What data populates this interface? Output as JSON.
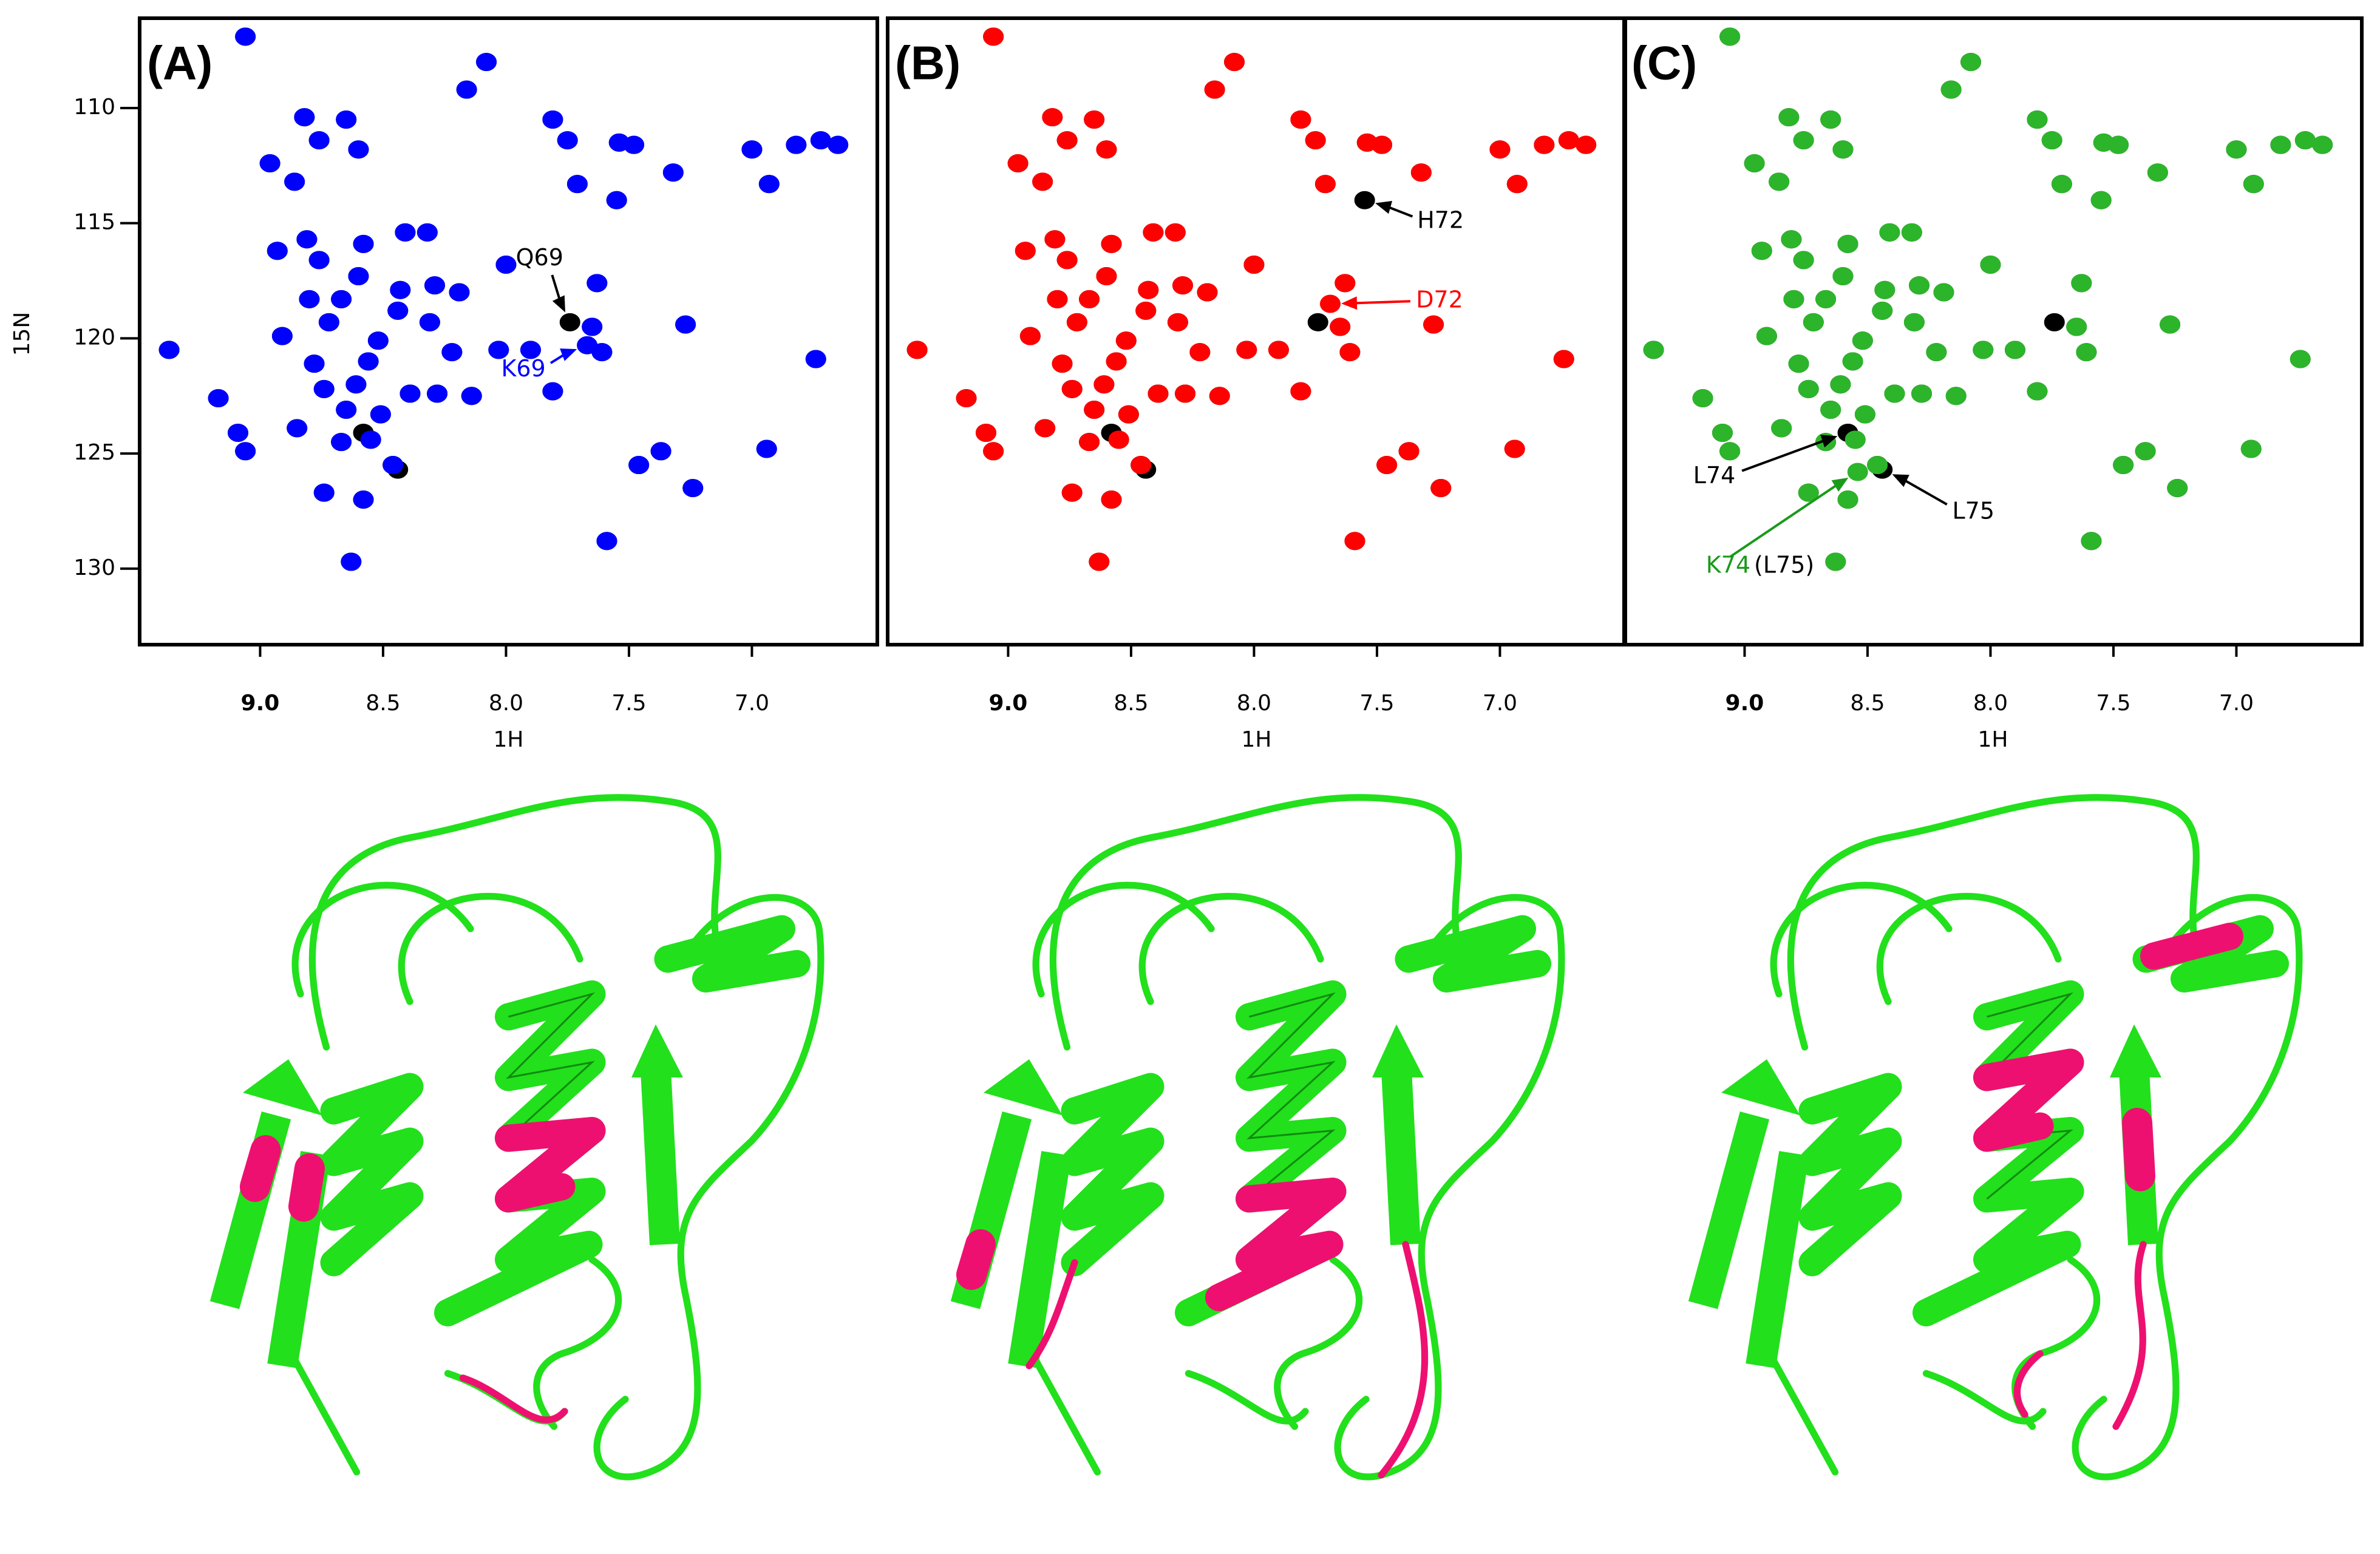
{
  "chart_data": [
    {
      "type": "scatter",
      "panel_label": "(A)",
      "xlabel": "1H",
      "ylabel": "15N",
      "xlim": [
        9.49,
        6.49
      ],
      "ylim": [
        106.1,
        133.3
      ],
      "xticks": [
        {
          "value": 9,
          "label": "9.0"
        },
        8.5,
        {
          "value": 8,
          "label": "8.0"
        },
        7.5,
        {
          "value": 7,
          "label": "7.0"
        }
      ],
      "yticks": [
        110,
        115,
        120,
        125,
        130
      ],
      "series": [
        {
          "color": "#000000",
          "x": [
            9.06,
            8.08,
            8.16,
            8.82,
            8.65,
            8.96,
            8.86,
            8.6,
            8.76,
            7.81,
            7.75,
            7.54,
            7.48,
            7.32,
            7.0,
            6.82,
            6.72,
            6.65,
            6.93,
            7.55,
            7.71,
            9.37,
            9.17,
            9.09,
            9.06,
            8.93,
            8.81,
            8.76,
            8.58,
            8.41,
            8.32,
            8.6,
            8.43,
            8.8,
            8.67,
            8.91,
            8.72,
            8.44,
            8.52,
            8.31,
            8.29,
            8.19,
            8.0,
            8.22,
            8.03,
            7.9,
            7.81,
            7.63,
            7.65,
            7.61,
            7.27,
            6.74,
            8.78,
            8.56,
            8.74,
            8.61,
            8.65,
            8.51,
            8.39,
            8.28,
            8.14,
            8.85,
            8.67,
            8.55,
            8.46,
            8.74,
            8.58,
            8.63,
            7.59,
            7.46,
            7.37,
            7.24,
            6.94,
            7.74,
            8.58,
            8.44
          ],
          "y": [
            106.9,
            108.0,
            109.2,
            110.4,
            110.5,
            112.4,
            113.2,
            111.8,
            111.4,
            110.5,
            111.4,
            111.5,
            111.6,
            112.8,
            111.8,
            111.6,
            111.4,
            111.6,
            113.3,
            114.0,
            113.3,
            120.5,
            122.6,
            124.1,
            124.9,
            116.2,
            115.7,
            116.6,
            115.9,
            115.4,
            115.4,
            117.3,
            117.9,
            118.3,
            118.3,
            119.9,
            119.3,
            118.8,
            120.1,
            119.3,
            117.7,
            118.0,
            116.8,
            120.6,
            120.5,
            120.5,
            122.3,
            117.6,
            119.5,
            120.6,
            119.4,
            120.9,
            121.1,
            121.0,
            122.2,
            122.0,
            123.1,
            123.3,
            122.4,
            122.4,
            122.5,
            123.9,
            124.5,
            124.4,
            125.5,
            126.7,
            127.0,
            129.7,
            128.8,
            125.5,
            124.9,
            126.5,
            124.8,
            119.3,
            124.1,
            125.7
          ]
        },
        {
          "color": "#0000ff",
          "x": [
            9.06,
            8.08,
            8.16,
            8.82,
            8.65,
            8.96,
            8.86,
            8.6,
            8.76,
            7.81,
            7.75,
            7.54,
            7.48,
            7.32,
            7.0,
            6.82,
            6.72,
            6.65,
            6.93,
            7.55,
            7.71,
            9.37,
            9.17,
            9.09,
            9.06,
            8.93,
            8.81,
            8.76,
            8.58,
            8.41,
            8.32,
            8.6,
            8.43,
            8.8,
            8.67,
            8.91,
            8.72,
            8.44,
            8.52,
            8.31,
            8.29,
            8.19,
            8.0,
            8.22,
            8.03,
            7.9,
            7.81,
            7.63,
            7.65,
            7.61,
            7.27,
            6.74,
            8.78,
            8.56,
            8.74,
            8.61,
            8.65,
            8.51,
            8.39,
            8.28,
            8.14,
            8.85,
            8.67,
            8.55,
            8.46,
            8.74,
            8.58,
            8.63,
            7.59,
            7.46,
            7.37,
            7.24,
            6.94,
            7.67
          ],
          "y": [
            106.9,
            108.0,
            109.2,
            110.4,
            110.5,
            112.4,
            113.2,
            111.8,
            111.4,
            110.5,
            111.4,
            111.5,
            111.6,
            112.8,
            111.8,
            111.6,
            111.4,
            111.6,
            113.3,
            114.0,
            113.3,
            120.5,
            122.6,
            124.1,
            124.9,
            116.2,
            115.7,
            116.6,
            115.9,
            115.4,
            115.4,
            117.3,
            117.9,
            118.3,
            118.3,
            119.9,
            119.3,
            118.8,
            120.1,
            119.3,
            117.7,
            118.0,
            116.8,
            120.6,
            120.5,
            120.5,
            122.3,
            117.6,
            119.5,
            120.6,
            119.4,
            120.9,
            121.1,
            121.0,
            122.2,
            122.0,
            123.1,
            123.3,
            122.4,
            122.4,
            122.5,
            123.9,
            124.5,
            124.4,
            125.5,
            126.7,
            127.0,
            129.7,
            128.8,
            125.5,
            124.9,
            126.5,
            124.8,
            120.3
          ]
        }
      ],
      "annotations": [
        {
          "text": "Q69",
          "color": "#000000",
          "x": 7.74,
          "y": 119.3
        },
        {
          "text": "K69",
          "color": "#0000ff",
          "x": 7.67,
          "y": 120.3
        }
      ]
    },
    {
      "type": "scatter",
      "panel_label": "(B)",
      "xlabel": "1H",
      "xlim": [
        9.49,
        6.49
      ],
      "ylim": [
        106.1,
        133.3
      ],
      "xticks": [
        {
          "value": 9,
          "label": "9.0"
        },
        8.5,
        {
          "value": 8,
          "label": "8.0"
        },
        7.5,
        {
          "value": 7,
          "label": "7.0"
        }
      ],
      "series": [
        {
          "color": "#000000",
          "x": [
            9.06,
            8.08,
            8.16,
            8.82,
            8.65,
            8.96,
            8.86,
            8.6,
            8.76,
            7.81,
            7.75,
            7.54,
            7.48,
            7.32,
            7.0,
            6.82,
            6.72,
            6.65,
            6.93,
            7.55,
            7.71,
            9.37,
            9.17,
            9.09,
            9.06,
            8.93,
            8.81,
            8.76,
            8.58,
            8.41,
            8.32,
            8.6,
            8.43,
            8.8,
            8.67,
            8.91,
            8.72,
            8.44,
            8.52,
            8.31,
            8.29,
            8.19,
            8.0,
            8.22,
            8.03,
            7.9,
            7.81,
            7.63,
            7.65,
            7.61,
            7.27,
            6.74,
            8.78,
            8.56,
            8.74,
            8.61,
            8.65,
            8.51,
            8.39,
            8.28,
            8.14,
            8.85,
            8.67,
            8.55,
            8.46,
            8.74,
            8.58,
            8.63,
            7.59,
            7.46,
            7.37,
            7.24,
            6.94,
            7.74,
            8.58,
            8.44
          ],
          "y": [
            106.9,
            108.0,
            109.2,
            110.4,
            110.5,
            112.4,
            113.2,
            111.8,
            111.4,
            110.5,
            111.4,
            111.5,
            111.6,
            112.8,
            111.8,
            111.6,
            111.4,
            111.6,
            113.3,
            114.0,
            113.3,
            120.5,
            122.6,
            124.1,
            124.9,
            116.2,
            115.7,
            116.6,
            115.9,
            115.4,
            115.4,
            117.3,
            117.9,
            118.3,
            118.3,
            119.9,
            119.3,
            118.8,
            120.1,
            119.3,
            117.7,
            118.0,
            116.8,
            120.6,
            120.5,
            120.5,
            122.3,
            117.6,
            119.5,
            120.6,
            119.4,
            120.9,
            121.1,
            121.0,
            122.2,
            122.0,
            123.1,
            123.3,
            122.4,
            122.4,
            122.5,
            123.9,
            124.5,
            124.4,
            125.5,
            126.7,
            127.0,
            129.7,
            128.8,
            125.5,
            124.9,
            126.5,
            124.8,
            119.3,
            124.1,
            125.7
          ]
        },
        {
          "color": "#ff0000",
          "x": [
            9.06,
            8.08,
            8.16,
            8.82,
            8.65,
            8.96,
            8.86,
            8.6,
            8.76,
            7.81,
            7.75,
            7.54,
            7.48,
            7.32,
            7.0,
            6.82,
            6.72,
            6.65,
            6.93,
            7.71,
            9.37,
            9.17,
            9.09,
            9.06,
            8.93,
            8.81,
            8.76,
            8.58,
            8.41,
            8.32,
            8.6,
            8.43,
            8.8,
            8.67,
            8.91,
            8.72,
            8.44,
            8.52,
            8.31,
            8.29,
            8.19,
            8.0,
            8.22,
            8.03,
            7.9,
            7.81,
            7.63,
            7.65,
            7.61,
            7.27,
            6.74,
            8.78,
            8.56,
            8.74,
            8.61,
            8.65,
            8.51,
            8.39,
            8.28,
            8.14,
            8.85,
            8.67,
            8.55,
            8.46,
            8.74,
            8.58,
            8.63,
            7.59,
            7.46,
            7.37,
            7.24,
            6.94,
            7.69
          ],
          "y": [
            106.9,
            108.0,
            109.2,
            110.4,
            110.5,
            112.4,
            113.2,
            111.8,
            111.4,
            110.5,
            111.4,
            111.5,
            111.6,
            112.8,
            111.8,
            111.6,
            111.4,
            111.6,
            113.3,
            113.3,
            120.5,
            122.6,
            124.1,
            124.9,
            116.2,
            115.7,
            116.6,
            115.9,
            115.4,
            115.4,
            117.3,
            117.9,
            118.3,
            118.3,
            119.9,
            119.3,
            118.8,
            120.1,
            119.3,
            117.7,
            118.0,
            116.8,
            120.6,
            120.5,
            120.5,
            122.3,
            117.6,
            119.5,
            120.6,
            119.4,
            120.9,
            121.1,
            121.0,
            122.2,
            122.0,
            123.1,
            123.3,
            122.4,
            122.4,
            122.5,
            123.9,
            124.5,
            124.4,
            125.5,
            126.7,
            127.0,
            129.7,
            128.8,
            125.5,
            124.9,
            126.5,
            124.8,
            118.5
          ]
        }
      ],
      "annotations": [
        {
          "text": "H72",
          "color": "#000000",
          "x": 7.55,
          "y": 114.0
        },
        {
          "text": "D72",
          "color": "#ff0000",
          "x": 7.69,
          "y": 118.5
        }
      ]
    },
    {
      "type": "scatter",
      "panel_label": "(C)",
      "xlabel": "1H",
      "xlim": [
        9.49,
        6.49
      ],
      "ylim": [
        106.1,
        133.3
      ],
      "xticks": [
        {
          "value": 9,
          "label": "9.0"
        },
        8.5,
        {
          "value": 8,
          "label": "8.0"
        },
        7.5,
        {
          "value": 7,
          "label": "7.0"
        }
      ],
      "series": [
        {
          "color": "#000000",
          "x": [
            9.06,
            8.08,
            8.16,
            8.82,
            8.65,
            8.96,
            8.86,
            8.6,
            8.76,
            7.81,
            7.75,
            7.54,
            7.48,
            7.32,
            7.0,
            6.82,
            6.72,
            6.65,
            6.93,
            7.55,
            7.71,
            9.37,
            9.17,
            9.09,
            9.06,
            8.93,
            8.81,
            8.76,
            8.58,
            8.41,
            8.32,
            8.6,
            8.43,
            8.8,
            8.67,
            8.91,
            8.72,
            8.44,
            8.52,
            8.31,
            8.29,
            8.19,
            8.0,
            8.22,
            8.03,
            7.9,
            7.81,
            7.63,
            7.65,
            7.61,
            7.27,
            6.74,
            8.78,
            8.56,
            8.74,
            8.61,
            8.65,
            8.51,
            8.39,
            8.28,
            8.14,
            8.85,
            8.67,
            8.55,
            8.46,
            8.74,
            8.58,
            8.63,
            7.59,
            7.46,
            7.37,
            7.24,
            6.94,
            7.74,
            8.58,
            8.44
          ],
          "y": [
            106.9,
            108.0,
            109.2,
            110.4,
            110.5,
            112.4,
            113.2,
            111.8,
            111.4,
            110.5,
            111.4,
            111.5,
            111.6,
            112.8,
            111.8,
            111.6,
            111.4,
            111.6,
            113.3,
            114.0,
            113.3,
            120.5,
            122.6,
            124.1,
            124.9,
            116.2,
            115.7,
            116.6,
            115.9,
            115.4,
            115.4,
            117.3,
            117.9,
            118.3,
            118.3,
            119.9,
            119.3,
            118.8,
            120.1,
            119.3,
            117.7,
            118.0,
            116.8,
            120.6,
            120.5,
            120.5,
            122.3,
            117.6,
            119.5,
            120.6,
            119.4,
            120.9,
            121.1,
            121.0,
            122.2,
            122.0,
            123.1,
            123.3,
            122.4,
            122.4,
            122.5,
            123.9,
            124.5,
            124.4,
            125.5,
            126.7,
            127.0,
            129.7,
            128.8,
            125.5,
            124.9,
            126.5,
            124.8,
            119.3,
            124.1,
            125.7
          ]
        },
        {
          "color": "#2cb52a",
          "x": [
            9.06,
            8.08,
            8.16,
            8.82,
            8.65,
            8.96,
            8.86,
            8.6,
            8.76,
            7.81,
            7.75,
            7.54,
            7.48,
            7.32,
            7.0,
            6.82,
            6.72,
            6.65,
            6.93,
            7.55,
            7.71,
            9.37,
            9.17,
            9.09,
            9.06,
            8.93,
            8.81,
            8.76,
            8.58,
            8.41,
            8.32,
            8.6,
            8.43,
            8.8,
            8.67,
            8.91,
            8.72,
            8.44,
            8.52,
            8.31,
            8.29,
            8.19,
            8.0,
            8.22,
            8.03,
            7.9,
            7.81,
            7.63,
            7.65,
            7.61,
            7.27,
            6.74,
            8.78,
            8.56,
            8.74,
            8.61,
            8.65,
            8.51,
            8.39,
            8.28,
            8.14,
            8.85,
            8.67,
            8.55,
            8.46,
            8.74,
            8.58,
            8.63,
            7.59,
            7.46,
            7.37,
            7.24,
            6.94,
            8.54
          ],
          "y": [
            106.9,
            108.0,
            109.2,
            110.4,
            110.5,
            112.4,
            113.2,
            111.8,
            111.4,
            110.5,
            111.4,
            111.5,
            111.6,
            112.8,
            111.8,
            111.6,
            111.4,
            111.6,
            113.3,
            114.0,
            113.3,
            120.5,
            122.6,
            124.1,
            124.9,
            116.2,
            115.7,
            116.6,
            115.9,
            115.4,
            115.4,
            117.3,
            117.9,
            118.3,
            118.3,
            119.9,
            119.3,
            118.8,
            120.1,
            119.3,
            117.7,
            118.0,
            116.8,
            120.6,
            120.5,
            120.5,
            122.3,
            117.6,
            119.5,
            120.6,
            119.4,
            120.9,
            121.1,
            121.0,
            122.2,
            122.0,
            123.1,
            123.3,
            122.4,
            122.4,
            122.5,
            123.9,
            124.5,
            124.4,
            125.5,
            126.7,
            127.0,
            129.7,
            128.8,
            125.5,
            124.9,
            126.5,
            124.8,
            125.8
          ]
        }
      ],
      "annotations": [
        {
          "text": "L74",
          "color": "#000000",
          "x": 8.58,
          "y": 124.1
        },
        {
          "text": "L75",
          "color": "#000000",
          "x": 8.44,
          "y": 125.7
        },
        {
          "text": "K74",
          "color": "#1a9a1a",
          "x": 8.54,
          "y": 125.8,
          "note": "(L75)"
        }
      ]
    }
  ]
}
